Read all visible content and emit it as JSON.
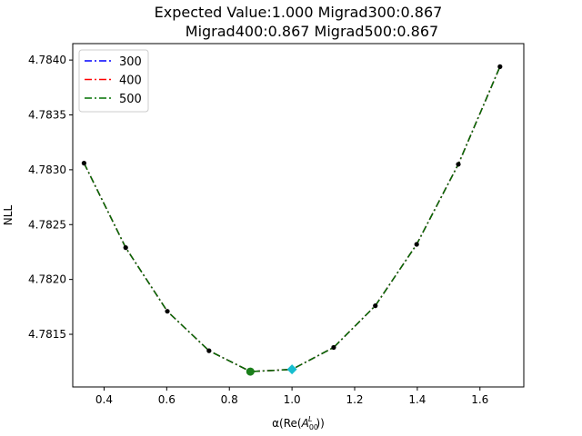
{
  "chart_data": {
    "type": "line",
    "title_lines": [
      "Expected Value:1.000       Migrad300:0.867",
      "Migrad400:0.867       Migrad500:0.867"
    ],
    "xlabel_prefix": "α(Re(",
    "xlabel_symbol": "A",
    "xlabel_sub": "00",
    "xlabel_sup": "L",
    "xlabel_suffix": "))",
    "ylabel": "NLL",
    "xlim": [
      0.3,
      1.74
    ],
    "ylim": [
      4.78102,
      4.78415
    ],
    "xticks": [
      0.4,
      0.6,
      0.8,
      1.0,
      1.2,
      1.4,
      1.6
    ],
    "xtick_labels": [
      "0.4",
      "0.6",
      "0.8",
      "1.0",
      "1.2",
      "1.4",
      "1.6"
    ],
    "yticks": [
      4.7815,
      4.782,
      4.7825,
      4.783,
      4.7835,
      4.784
    ],
    "ytick_labels": [
      "4.7815",
      "4.7820",
      "4.7825",
      "4.7830",
      "4.7835",
      "4.7840"
    ],
    "grid": false,
    "legend_position": "top-left",
    "scan_points": {
      "color": "#000000",
      "x": [
        0.336,
        0.469,
        0.602,
        0.735,
        0.868,
        1.0,
        1.133,
        1.266,
        1.398,
        1.531,
        1.664
      ],
      "y": [
        4.78306,
        4.78229,
        4.78171,
        4.78135,
        4.78116,
        4.78118,
        4.78138,
        4.78176,
        4.78232,
        4.78305,
        4.78394
      ]
    },
    "series": [
      {
        "name": "300",
        "color": "#0000ff",
        "style": "dashdot"
      },
      {
        "name": "400",
        "color": "#ff0000",
        "style": "dashdot"
      },
      {
        "name": "500",
        "color": "#007000",
        "style": "dashdot"
      }
    ],
    "minimum_marker": {
      "x": 0.867,
      "y": 4.78116,
      "color": "#1a7f1a"
    },
    "expected_marker": {
      "x": 1.0,
      "y": 4.78118,
      "color": "#17becf"
    }
  }
}
